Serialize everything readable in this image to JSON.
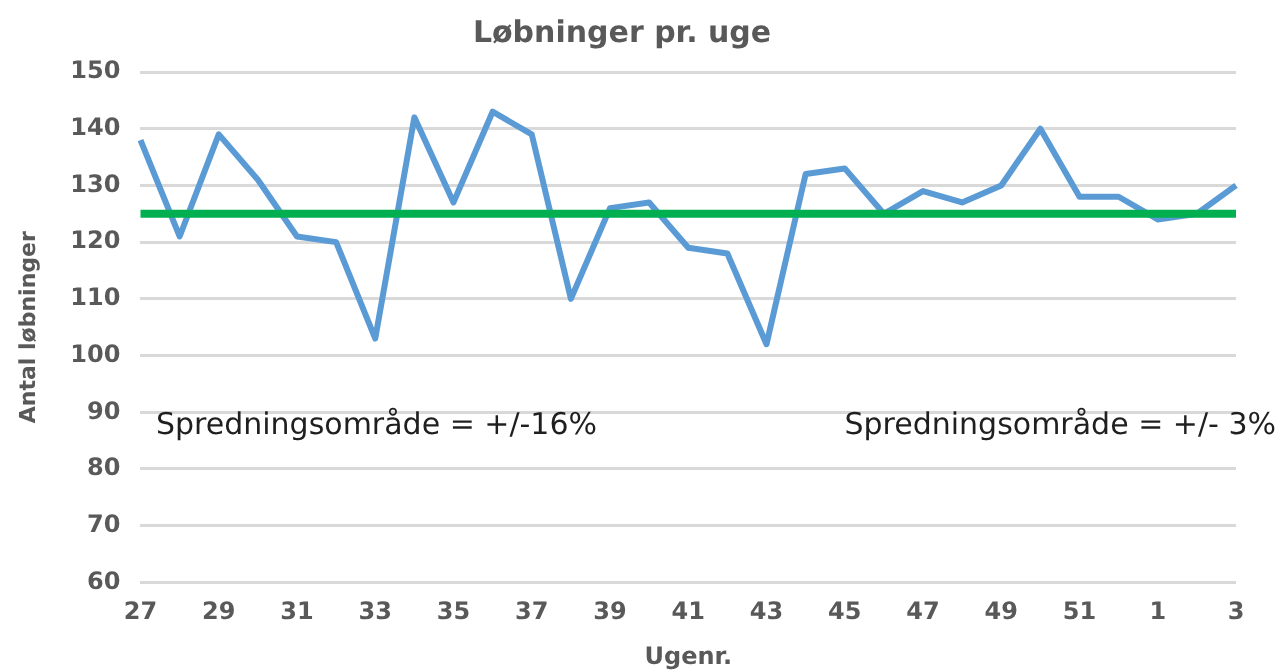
{
  "chart_data": {
    "type": "line",
    "title": "Løbninger pr. uge",
    "xlabel": "Ugenr.",
    "ylabel": "Antal løbninger",
    "categories": [
      "27",
      null,
      "29",
      null,
      "31",
      null,
      "33",
      null,
      "35",
      null,
      "37",
      null,
      "39",
      null,
      "41",
      null,
      "43",
      null,
      "45",
      null,
      "47",
      null,
      "49",
      null,
      "51",
      null,
      "1",
      null,
      "3"
    ],
    "series": [
      {
        "color": "#5b9bd5",
        "values": [
          138,
          121,
          139,
          131,
          121,
          120,
          103,
          142,
          127,
          143,
          139,
          110,
          126,
          127,
          119,
          118,
          102,
          132,
          133,
          125,
          129,
          127,
          130,
          140,
          128,
          128,
          124,
          125,
          130
        ]
      }
    ],
    "ylim": [
      60,
      150
    ],
    "yticks": [
      60,
      70,
      80,
      90,
      100,
      110,
      120,
      130,
      140,
      150
    ],
    "grid": "y",
    "legend": false,
    "marker": "none",
    "line_style": "solid",
    "ref_lines": [
      {
        "axis": "y",
        "value": 125,
        "color": "#00b050",
        "line_style": "solid"
      }
    ],
    "annotations": [
      "Spredningsområde = +/-16%",
      "Spredningsområde = +/- 3%"
    ]
  }
}
